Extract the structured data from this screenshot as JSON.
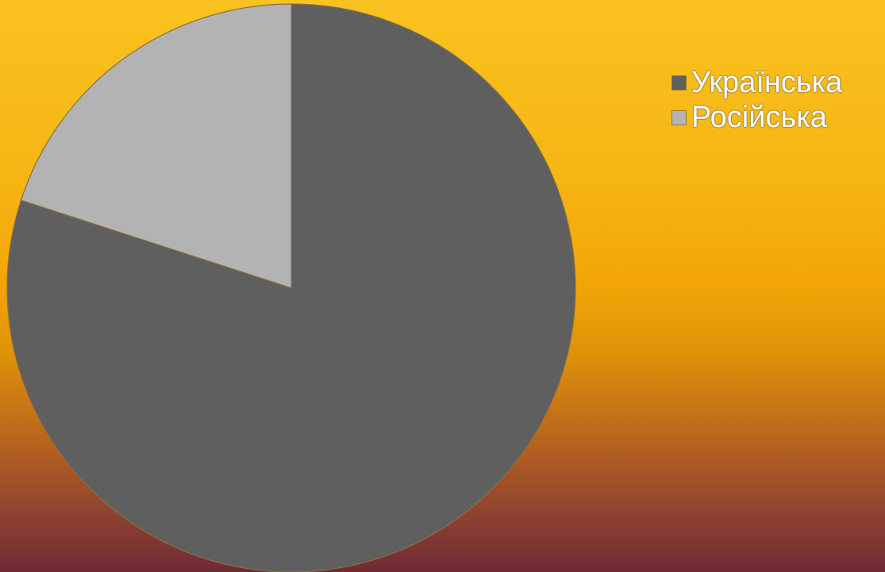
{
  "chart_data": {
    "type": "pie",
    "title": "",
    "slices": [
      {
        "label": "Українська",
        "value": 80,
        "color": "#5f5f5f"
      },
      {
        "label": "Російська",
        "value": 20,
        "color": "#b3b3b3"
      }
    ],
    "start_angle_deg": 0,
    "direction": "clockwise",
    "legend_position": "right"
  }
}
